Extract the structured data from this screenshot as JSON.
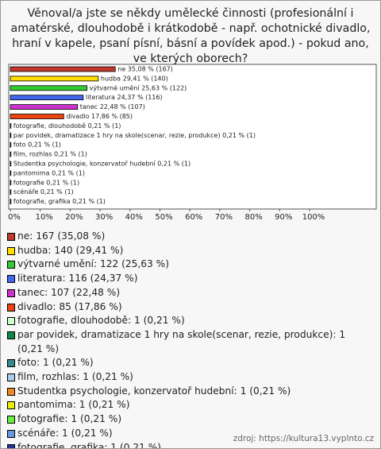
{
  "chart_data": {
    "type": "hbar",
    "title": "Věnoval/a jste se někdy umělecké činnosti (profesionální i amatérské, dlouhodobě i krátkodobě - např. ochotnické divadlo, hraní v kapele, psaní písní, básní a povídek apod.) - pokud ano, ve kterých oborech?",
    "categories": [
      "ne",
      "hudba",
      "výtvarné umění",
      "literatura",
      "tanec",
      "divadlo",
      "fotografie, dlouhodobě",
      "par povidek, dramatizace 1 hry na skole(scenar, rezie, produkce)",
      "foto",
      "film, rozhlas",
      "Studentka psychologie, konzervatoř hudební",
      "pantomima",
      "fotografie",
      "scénáře",
      "fotografie, grafika"
    ],
    "values": [
      35.08,
      29.41,
      25.63,
      24.37,
      22.48,
      17.86,
      0.21,
      0.21,
      0.21,
      0.21,
      0.21,
      0.21,
      0.21,
      0.21,
      0.21
    ],
    "value_labels": [
      "ne 35,08 % (167)",
      "hudba 29,41 % (140)",
      "výtvarné umění 25,63 % (122)",
      "literatura 24,37 % (116)",
      "tanec 22,48 % (107)",
      "divadlo 17,86 % (85)",
      "fotografie, dlouhodobě 0,21 % (1)",
      "par povidek, dramatizace 1 hry na skole(scenar, rezie, produkce) 0,21 % (1)",
      "foto 0,21 % (1)",
      "film, rozhlas 0,21 % (1)",
      "Studentka psychologie, konzervatoř hudební 0,21 % (1)",
      "pantomima 0,21 % (1)",
      "fotografie 0,21 % (1)",
      "scénáře 0,21 % (1)",
      "fotografie, grafika 0,21 % (1)"
    ],
    "legend_labels": [
      "ne: 167 (35,08 %)",
      "hudba: 140 (29,41 %)",
      "výtvarné umění: 122 (25,63 %)",
      "literatura: 116 (24,37 %)",
      "tanec: 107 (22,48 %)",
      "divadlo: 85 (17,86 %)",
      "fotografie, dlouhodobě: 1 (0,21 %)",
      "par povidek, dramatizace 1 hry na skole(scenar, rezie, produkce): 1 (0,21 %)",
      "foto: 1 (0,21 %)",
      "film, rozhlas: 1 (0,21 %)",
      "Studentka psychologie, konzervatoř hudební: 1 (0,21 %)",
      "pantomima: 1 (0,21 %)",
      "fotografie: 1 (0,21 %)",
      "scénáře: 1 (0,21 %)",
      "fotografie, grafika: 1 (0,21 %)"
    ],
    "colors": [
      "#c0392b",
      "#ffdd00",
      "#33cc33",
      "#4466ee",
      "#cc33cc",
      "#ee4411",
      "#ccffcc",
      "#118844",
      "#338888",
      "#aaccee",
      "#ee8822",
      "#eeee00",
      "#66ee44",
      "#6699dd",
      "#223399"
    ],
    "xlim": [
      0,
      100
    ],
    "xticks": [
      {
        "value": 0,
        "label": "0%"
      },
      {
        "value": 10,
        "label": "10%"
      },
      {
        "value": 20,
        "label": "20%"
      },
      {
        "value": 30,
        "label": "30%"
      },
      {
        "value": 40,
        "label": "40%"
      },
      {
        "value": 50,
        "label": "50%"
      },
      {
        "value": 60,
        "label": "60%"
      },
      {
        "value": 70,
        "label": "70%"
      },
      {
        "value": 80,
        "label": "80%"
      },
      {
        "value": 90,
        "label": "90%"
      },
      {
        "value": 100,
        "label": "100%"
      }
    ],
    "source": "zdroj: https://kultura13.vyplnto.cz"
  }
}
